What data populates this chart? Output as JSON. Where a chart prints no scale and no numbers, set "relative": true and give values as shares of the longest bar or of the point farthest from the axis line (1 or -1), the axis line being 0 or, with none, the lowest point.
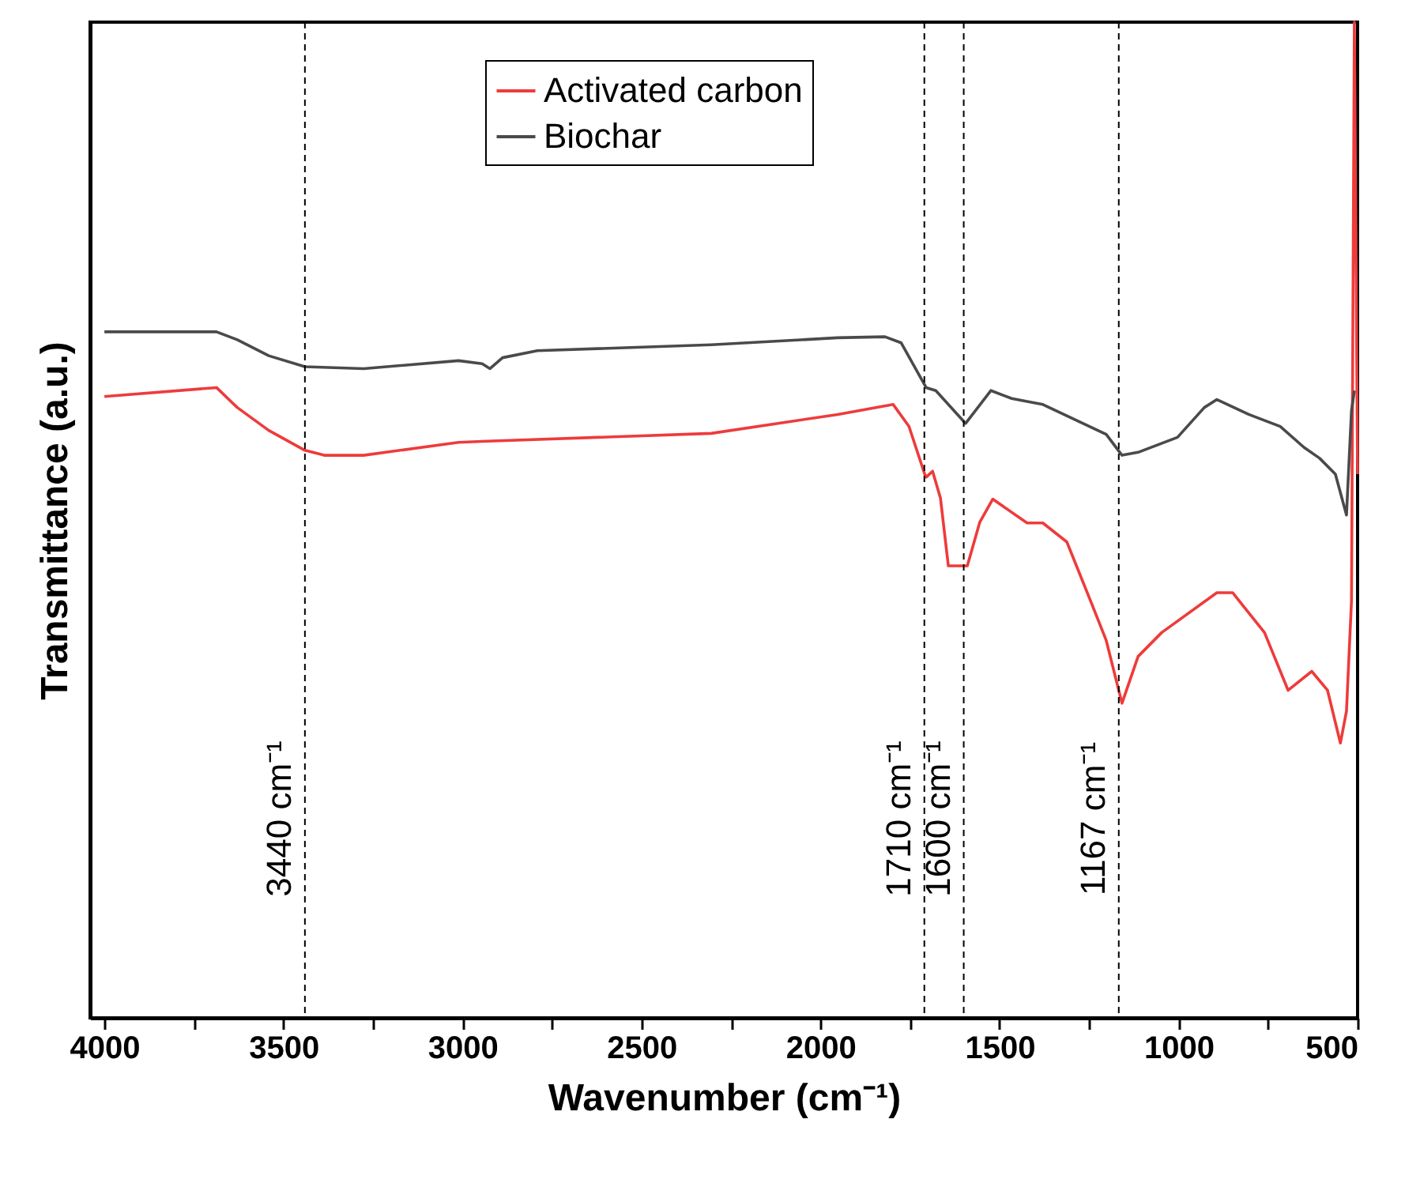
{
  "chart_data": {
    "type": "line",
    "relative": true,
    "xlabel": "Wavenumber (cm⁻¹)",
    "ylabel": "Transmittance (a.u.)",
    "xlim": [
      4040,
      500
    ],
    "xticks": [
      4000,
      {
        "value": 3750,
        "label": null
      },
      3500,
      {
        "value": 3250,
        "label": null
      },
      3000,
      {
        "value": 2750,
        "label": null
      },
      2500,
      {
        "value": 2250,
        "label": null
      },
      2000,
      {
        "value": 1750,
        "label": null
      },
      1500,
      {
        "value": 1250,
        "label": null
      },
      1000,
      {
        "value": 750,
        "label": null
      },
      500
    ],
    "grid": false,
    "legend": "top",
    "line_style": "solid",
    "marker": "none",
    "series": [
      {
        "name": "Activated carbon",
        "color": "#ee3b3b",
        "x": [
          4000,
          3687,
          3629,
          3541,
          3440,
          3386,
          3276,
          3011,
          2945,
          2305,
          1952,
          1797,
          1753,
          1709,
          1705,
          1687,
          1665,
          1643,
          1590,
          1555,
          1519,
          1423,
          1379,
          1312,
          1246,
          1202,
          1158,
          1113,
          1047,
          893,
          849,
          760,
          694,
          628,
          584,
          548,
          531,
          517,
          509,
          500
        ],
        "values": [
          0.624,
          0.633,
          0.613,
          0.59,
          0.57,
          0.565,
          0.565,
          0.578,
          0.579,
          0.587,
          0.606,
          0.616,
          0.594,
          0.546,
          0.543,
          0.549,
          0.522,
          0.454,
          0.454,
          0.498,
          0.521,
          0.497,
          0.497,
          0.478,
          0.419,
          0.379,
          0.316,
          0.363,
          0.387,
          0.427,
          0.427,
          0.387,
          0.329,
          0.348,
          0.329,
          0.276,
          0.308,
          0.419,
          1.0,
          0.546
        ]
      },
      {
        "name": "Biochar",
        "color": "#4a4a4a",
        "x": [
          4000,
          3687,
          3629,
          3541,
          3440,
          3276,
          3011,
          2945,
          2923,
          2888,
          2791,
          2305,
          1952,
          1820,
          1775,
          1705,
          1678,
          1595,
          1524,
          1466,
          1379,
          1202,
          1158,
          1113,
          1003,
          928,
          893,
          804,
          716,
          650,
          606,
          562,
          531,
          517,
          509
        ],
        "values": [
          0.689,
          0.689,
          0.681,
          0.665,
          0.654,
          0.652,
          0.66,
          0.657,
          0.652,
          0.663,
          0.67,
          0.676,
          0.683,
          0.684,
          0.678,
          0.633,
          0.63,
          0.597,
          0.63,
          0.622,
          0.616,
          0.586,
          0.565,
          0.568,
          0.583,
          0.613,
          0.621,
          0.606,
          0.594,
          0.573,
          0.562,
          0.546,
          0.505,
          0.61,
          0.63
        ]
      }
    ],
    "ref_lines": [
      {
        "axis": "x",
        "value": 3440,
        "label": "3440 cm⁻¹",
        "color": "#000000",
        "line_style": "dashed"
      },
      {
        "axis": "x",
        "value": 1710,
        "label": "1710 cm⁻¹",
        "color": "#000000",
        "line_style": "dashed"
      },
      {
        "axis": "x",
        "value": 1600,
        "label": "1600 cm⁻¹",
        "color": "#000000",
        "line_style": "dashed"
      },
      {
        "axis": "x",
        "value": 1167,
        "label": "1167 cm⁻¹",
        "color": "#000000",
        "line_style": "dashed"
      }
    ]
  }
}
